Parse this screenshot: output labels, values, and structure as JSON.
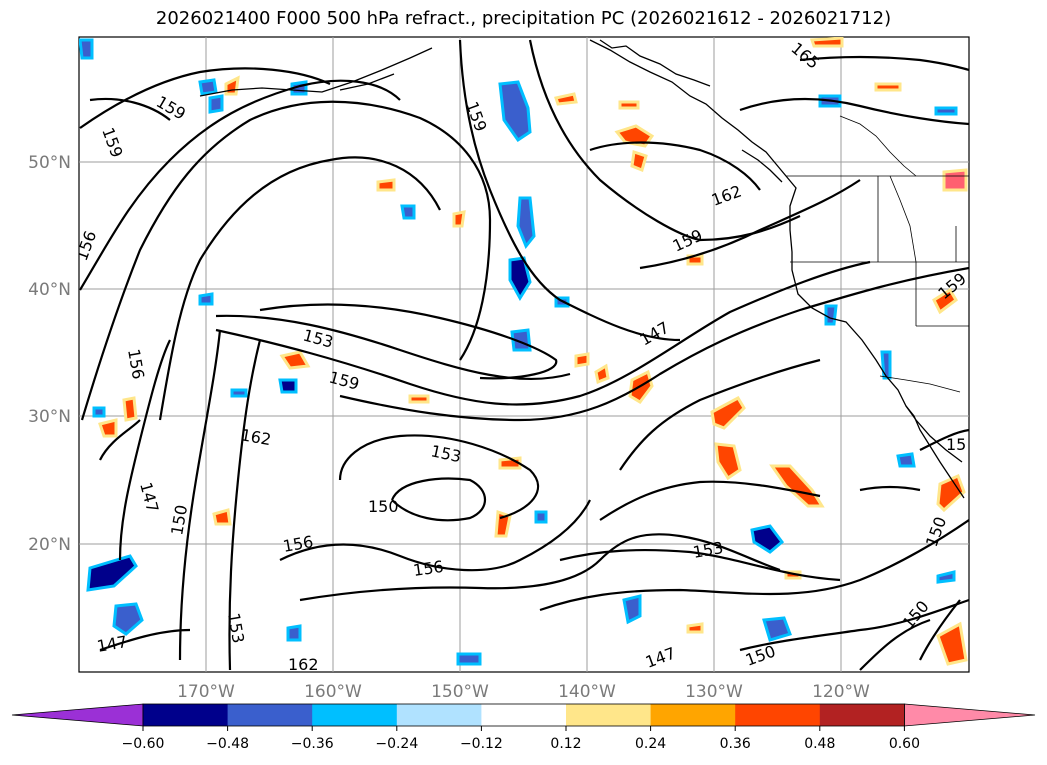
{
  "title": "2026021400 F000 500 hPa refract., precipitation PC (2026021612 - 2026021712)",
  "map": {
    "lon_labels": [
      "170°W",
      "160°W",
      "150°W",
      "140°W",
      "130°W",
      "120°W"
    ],
    "lat_labels": [
      "50°N",
      "40°N",
      "30°N",
      "20°N"
    ],
    "contour_labels": [
      "159",
      "159",
      "156",
      "156",
      "147",
      "159",
      "162",
      "159",
      "165",
      "153",
      "159",
      "162",
      "153",
      "147",
      "150",
      "156",
      "150",
      "156",
      "153",
      "162",
      "147",
      "147",
      "150",
      "150",
      "150",
      "159",
      "153",
      "15"
    ]
  },
  "colorbar": {
    "ticks": [
      "−0.60",
      "−0.48",
      "−0.36",
      "−0.24",
      "−0.12",
      "0.12",
      "0.24",
      "0.36",
      "0.48",
      "0.60"
    ],
    "colors": [
      "#9b30d6",
      "#00008b",
      "#3a5fcd",
      "#00bfff",
      "#b0e2ff",
      "#ffffff",
      "#ffe68a",
      "#ffa500",
      "#ff4500",
      "#b22222",
      "#ff8aa8"
    ]
  }
}
